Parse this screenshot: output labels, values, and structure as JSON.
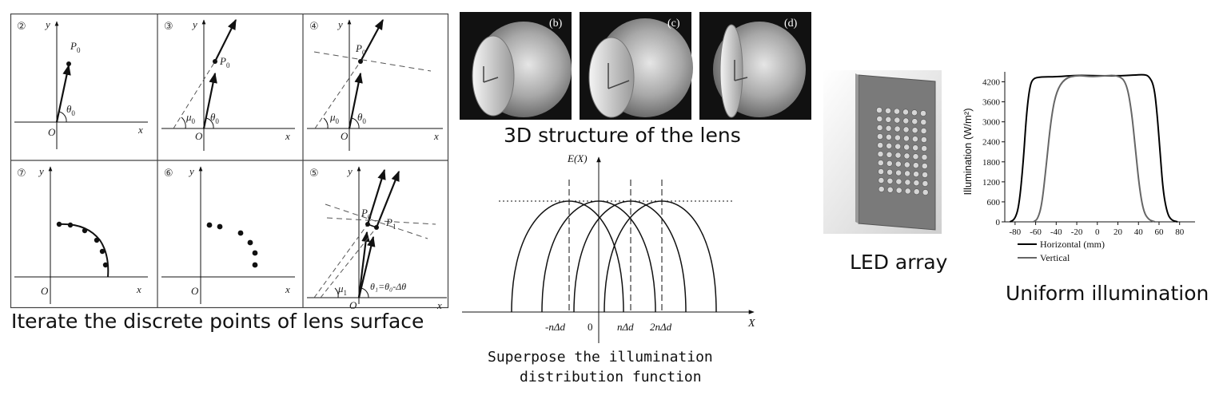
{
  "captions": {
    "iterate": "Iterate the discrete points of lens surface",
    "structure": "3D structure of the lens",
    "superpose_line1": "Superpose the illumination",
    "superpose_line2": "distribution function",
    "led": "LED array",
    "uniform": "Uniform illumination"
  },
  "panels": [
    {
      "num": "②"
    },
    {
      "num": "③"
    },
    {
      "num": "④"
    },
    {
      "num": "⑦"
    },
    {
      "num": "⑥"
    },
    {
      "num": "⑤"
    }
  ],
  "axis_labels": {
    "x": "x",
    "y": "y",
    "origin": "O"
  },
  "point_labels": {
    "p0": "P",
    "p0_sub": "0",
    "p1": "P",
    "p1_sub": "1",
    "theta0": "θ",
    "theta0_sub": "0",
    "mu0": "μ",
    "mu0_sub": "0",
    "mu1": "μ",
    "mu1_sub": "1",
    "theta1_expr": "θ₁=θ₀-Δθ"
  },
  "lens_views": [
    {
      "label": "(b)"
    },
    {
      "label": "(c)"
    },
    {
      "label": "(d)"
    }
  ],
  "superpose": {
    "y_label": "E(X)",
    "x_label": "X",
    "ticks": [
      "-nΔd",
      "0",
      "nΔd",
      "2nΔd"
    ]
  },
  "chart_data": {
    "type": "line",
    "ylabel": "Illumination (W/m²)",
    "xlabel": "(mm)",
    "xlim": [
      -90,
      95
    ],
    "ylim": [
      0,
      4500
    ],
    "xticks": [
      "-80",
      "-60",
      "-40",
      "-20",
      "0",
      "20",
      "40",
      "60",
      "80"
    ],
    "yticks": [
      "0",
      "600",
      "1200",
      "1800",
      "2400",
      "3000",
      "3600",
      "4200"
    ],
    "grid": false,
    "legend_position": "bottom-left",
    "series": [
      {
        "name": "Horizontal (mm)",
        "color": "#000000",
        "points": [
          [
            -85,
            0
          ],
          [
            -80,
            80
          ],
          [
            -76,
            500
          ],
          [
            -72,
            1800
          ],
          [
            -69,
            3200
          ],
          [
            -66,
            4000
          ],
          [
            -63,
            4300
          ],
          [
            -55,
            4350
          ],
          [
            -40,
            4350
          ],
          [
            -20,
            4400
          ],
          [
            0,
            4380
          ],
          [
            20,
            4380
          ],
          [
            35,
            4400
          ],
          [
            45,
            4420
          ],
          [
            50,
            4380
          ],
          [
            55,
            4100
          ],
          [
            58,
            3300
          ],
          [
            61,
            2100
          ],
          [
            64,
            900
          ],
          [
            68,
            250
          ],
          [
            72,
            50
          ],
          [
            78,
            0
          ]
        ]
      },
      {
        "name": "Vertical",
        "color": "#666666",
        "points": [
          [
            -62,
            0
          ],
          [
            -58,
            80
          ],
          [
            -54,
            500
          ],
          [
            -50,
            1600
          ],
          [
            -45,
            3100
          ],
          [
            -40,
            3900
          ],
          [
            -32,
            4300
          ],
          [
            -20,
            4400
          ],
          [
            -5,
            4350
          ],
          [
            5,
            4380
          ],
          [
            20,
            4400
          ],
          [
            28,
            4200
          ],
          [
            33,
            3400
          ],
          [
            37,
            2200
          ],
          [
            41,
            1000
          ],
          [
            45,
            300
          ],
          [
            50,
            60
          ],
          [
            56,
            0
          ]
        ]
      }
    ]
  },
  "colors": {
    "ink": "#111111",
    "vertical": "#666666",
    "panel_border": "#444444"
  }
}
